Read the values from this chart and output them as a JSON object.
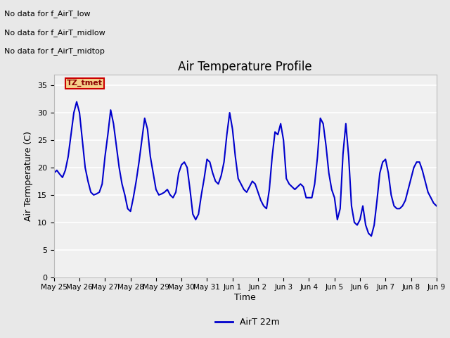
{
  "title": "Air Temperature Profile",
  "xlabel": "Time",
  "ylabel": "Air Termperature (C)",
  "ylim": [
    0,
    37
  ],
  "yticks": [
    0,
    5,
    10,
    15,
    20,
    25,
    30,
    35
  ],
  "line_color": "#0000cc",
  "line_width": 1.5,
  "legend_label": "AirT 22m",
  "legend_line_color": "#0000cc",
  "fig_bg_color": "#e8e8e8",
  "plot_bg_color": "#f0f0f0",
  "text_annotations": [
    "No data for f_AirT_low",
    "No data for f_AirT_midlow",
    "No data for f_AirT_midtop"
  ],
  "tz_label": "TZ_tmet",
  "x_tick_labels": [
    "May 25",
    "May 26",
    "May 27",
    "May 28",
    "May 29",
    "May 30",
    "May 31",
    "Jun 1",
    "Jun 2",
    "Jun 3",
    "Jun 4",
    "Jun 5",
    "Jun 6",
    "Jun 7",
    "Jun 8",
    "Jun 9"
  ],
  "temperature": [
    19.0,
    19.5,
    18.8,
    18.2,
    19.5,
    22.0,
    26.0,
    30.0,
    32.0,
    30.0,
    25.0,
    20.0,
    17.5,
    15.5,
    15.0,
    15.2,
    15.5,
    17.0,
    22.0,
    26.0,
    30.5,
    28.0,
    24.0,
    20.0,
    17.0,
    15.0,
    12.5,
    12.0,
    14.5,
    17.5,
    21.0,
    25.0,
    29.0,
    27.0,
    22.0,
    19.0,
    16.0,
    15.0,
    15.2,
    15.5,
    16.0,
    15.0,
    14.5,
    15.5,
    19.0,
    20.5,
    21.0,
    20.0,
    16.0,
    11.5,
    10.5,
    11.5,
    15.0,
    18.0,
    21.5,
    21.0,
    19.0,
    17.5,
    17.0,
    18.5,
    21.0,
    26.0,
    30.0,
    27.0,
    22.0,
    18.0,
    17.0,
    16.0,
    15.5,
    16.5,
    17.5,
    17.0,
    15.5,
    14.0,
    13.0,
    12.5,
    16.0,
    22.0,
    26.5,
    26.0,
    28.0,
    25.0,
    18.0,
    17.0,
    16.5,
    16.0,
    16.5,
    17.0,
    16.5,
    14.5,
    14.5,
    14.5,
    17.0,
    22.0,
    29.0,
    28.0,
    24.0,
    19.0,
    16.0,
    14.5,
    10.5,
    12.5,
    22.5,
    28.0,
    22.0,
    13.0,
    10.0,
    9.5,
    10.5,
    13.0,
    9.5,
    8.0,
    7.5,
    9.5,
    14.0,
    19.0,
    21.0,
    21.5,
    19.0,
    15.0,
    13.0,
    12.5,
    12.5,
    13.0,
    14.0,
    16.0,
    18.0,
    20.0,
    21.0,
    21.0,
    19.5,
    17.5,
    15.5,
    14.5,
    13.5,
    13.0
  ]
}
